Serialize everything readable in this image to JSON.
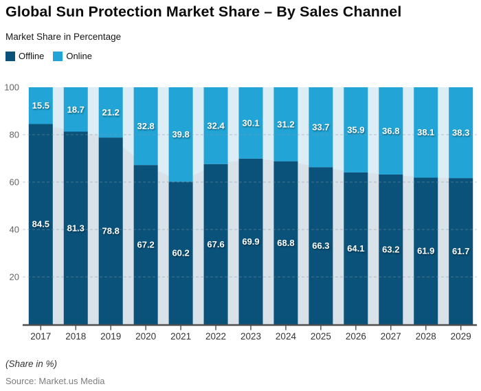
{
  "header": {
    "title": "Global Sun Protection Market Share – By Sales Channel",
    "subtitle": "Market Share in Percentage"
  },
  "legend": {
    "items": [
      {
        "label": "Offline",
        "color": "#0b527a"
      },
      {
        "label": "Online",
        "color": "#22a5d6"
      }
    ]
  },
  "chart_data": {
    "type": "bar",
    "stacked": true,
    "title": "Global Sun Protection Market Share – By Sales Channel",
    "subtitle": "Market Share in Percentage",
    "categories": [
      "2017",
      "2018",
      "2019",
      "2020",
      "2021",
      "2022",
      "2023",
      "2024",
      "2025",
      "2026",
      "2027",
      "2028",
      "2029"
    ],
    "series": [
      {
        "name": "Offline",
        "color": "#0b527a",
        "values": [
          84.5,
          81.3,
          78.8,
          67.2,
          60.2,
          67.6,
          69.9,
          68.8,
          66.3,
          64.1,
          63.2,
          61.9,
          61.7
        ]
      },
      {
        "name": "Online",
        "color": "#22a5d6",
        "values": [
          15.5,
          18.7,
          21.2,
          32.8,
          39.8,
          32.4,
          30.1,
          31.2,
          33.7,
          35.9,
          36.8,
          38.1,
          38.3
        ]
      }
    ],
    "xlabel": "",
    "ylabel": "",
    "ylim": [
      0,
      100
    ],
    "yticks": [
      20,
      40,
      60,
      80,
      100
    ],
    "grid": {
      "horizontal": true,
      "style": "dashed"
    },
    "legend_position": "top-left",
    "plot_background_fill": "#dcedf6",
    "offline_silhouette_fill": "#d9e2e8",
    "axis_color": "#4d4d4d"
  },
  "footer": {
    "note": "(Share in %)",
    "source": "Source: Market.us Media"
  }
}
